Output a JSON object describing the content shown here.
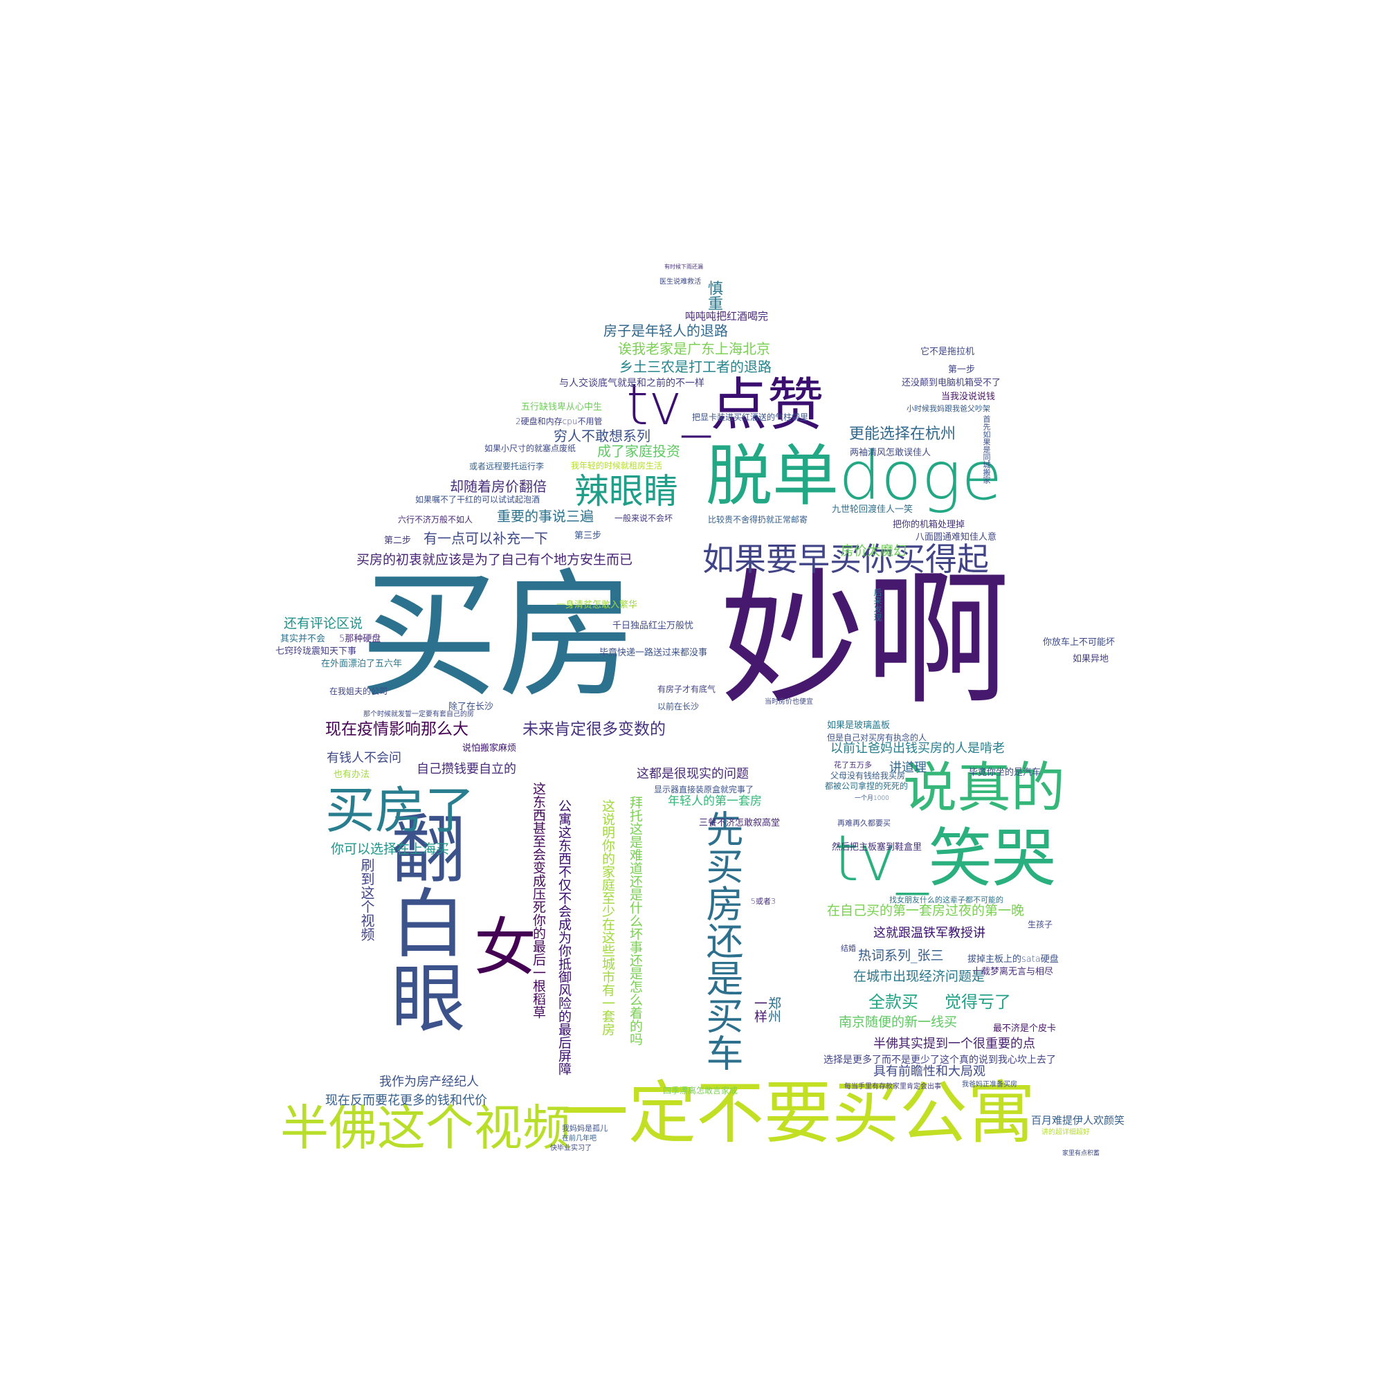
{
  "words": [
    {
      "text": "妙啊",
      "color": "#47196e"
    },
    {
      "text": "买房",
      "color": "#2c728e"
    },
    {
      "text": "一定不要买公寓",
      "color": "#c2df23"
    },
    {
      "text": "脱单doge",
      "color": "#22a884"
    },
    {
      "text": "tv_点赞",
      "color": "#3b0f70"
    },
    {
      "text": "tv_笑哭",
      "color": "#2ab07f"
    },
    {
      "text": "翻白眼",
      "color": "#3b528b"
    },
    {
      "text": "半佛这个视频",
      "color": "#b8de29"
    },
    {
      "text": "说真的",
      "color": "#35b779"
    },
    {
      "text": "买房了",
      "color": "#287d8e"
    },
    {
      "text": "女",
      "color": "#440154"
    },
    {
      "text": "先买房还是买车",
      "color": "#2d708e"
    },
    {
      "text": "如果要早买你买得起",
      "color": "#414487"
    },
    {
      "text": "辣眼睛",
      "color": "#1f9e89"
    },
    {
      "text": "房子是年轻人的退路",
      "color": "#31688e"
    },
    {
      "text": "诶我老家是广东上海北京",
      "color": "#7ad151"
    },
    {
      "text": "乡土三农是打工者的退路",
      "color": "#25858e"
    },
    {
      "text": "吨吨吨把红酒喝完",
      "color": "#482878"
    },
    {
      "text": "慎重",
      "color": "#2a788e"
    },
    {
      "text": "医生说难救活",
      "color": "#3e4989"
    },
    {
      "text": "有时候下雨还漏",
      "color": "#46327e"
    },
    {
      "text": "与人交谈底气就是和之前的不一样",
      "color": "#433e85"
    },
    {
      "text": "穷人不敢想系列",
      "color": "#3b528b"
    },
    {
      "text": "成了家庭投资",
      "color": "#5ec962"
    },
    {
      "text": "更能选择在杭州",
      "color": "#31688e"
    },
    {
      "text": "却随着房价翻倍",
      "color": "#472d7b"
    },
    {
      "text": "重要的事说三遍",
      "color": "#2c728e"
    },
    {
      "text": "有一点可以补充一下",
      "color": "#3e4989"
    },
    {
      "text": "买房的初衷就应该是为了自己有个地方安生而已",
      "color": "#482475"
    },
    {
      "text": "房价太魔幻",
      "color": "#6ece58"
    },
    {
      "text": "还有评论区说",
      "color": "#21918c"
    },
    {
      "text": "现在疫情影响那么大",
      "color": "#440154"
    },
    {
      "text": "未来肯定很多变数的",
      "color": "#46327e"
    },
    {
      "text": "有钱人不会问",
      "color": "#3e4989"
    },
    {
      "text": "自己攒钱要自立的",
      "color": "#472a7a"
    },
    {
      "text": "以前让爸妈出钱买房的人是啃老",
      "color": "#277f8e"
    },
    {
      "text": "这都是很现实的问题",
      "color": "#482878"
    },
    {
      "text": "年轻人的第一套房",
      "color": "#35b779"
    },
    {
      "text": "你可以选择在上海买",
      "color": "#1f988b"
    },
    {
      "text": "刷到这个视频",
      "color": "#414487"
    },
    {
      "text": "在自己买的第一套房过夜的第一晚",
      "color": "#7ad151"
    },
    {
      "text": "这就跟温铁军教授讲",
      "color": "#3b0f70"
    },
    {
      "text": "热词系列_张三",
      "color": "#355f8d"
    },
    {
      "text": "在城市出现经济问题是",
      "color": "#2a788e"
    },
    {
      "text": "全款买",
      "color": "#21a685"
    },
    {
      "text": "觉得亏了",
      "color": "#1fa187"
    },
    {
      "text": "南京随便的新一线买",
      "color": "#5ec962"
    },
    {
      "text": "半佛其实提到一个很重要的点",
      "color": "#481f70"
    },
    {
      "text": "具有前瞻性和大局观",
      "color": "#3e4989"
    },
    {
      "text": "我作为房产经纪人",
      "color": "#3b528b"
    },
    {
      "text": "现在反而要花更多的钱和代价",
      "color": "#355f8d"
    },
    {
      "text": "讲道理",
      "color": "#31688e"
    },
    {
      "text": "公寓这东西不仅不会成为你抵御风险的最后屏障",
      "color": "#3b0f70"
    },
    {
      "text": "这东西甚至会变成压死你的最后一根稻草",
      "color": "#46085c"
    },
    {
      "text": "这说明你的家庭至少在这些城市有一套房",
      "color": "#a0da39"
    },
    {
      "text": "拜托这是难道还是什么坏事还是怎么着的吗",
      "color": "#7ad151"
    },
    {
      "text": "一样",
      "color": "#481a6c"
    },
    {
      "text": "郑州",
      "color": "#2e6e8e"
    },
    {
      "text": "第一步",
      "color": "#404688"
    },
    {
      "text": "第二步",
      "color": "#453781"
    },
    {
      "text": "第三步",
      "color": "#39568c"
    },
    {
      "text": "选择是更多了而不是更少了这个真的说到我心坎上去了",
      "color": "#414487"
    },
    {
      "text": "百月难提伊人欢颜笑",
      "color": "#355f8d"
    },
    {
      "text": "最不济是个皮卡",
      "color": "#481769"
    },
    {
      "text": "拔掉主板上的sata硬盘",
      "color": "#3b528b"
    },
    {
      "text": "十载梦离无言与相尽",
      "color": "#472d7b"
    },
    {
      "text": "然后把主板塞到鞋盒里",
      "color": "#46327e"
    },
    {
      "text": "你放车上不可能坏",
      "color": "#3e4989"
    },
    {
      "text": "如果异地",
      "color": "#433e85"
    },
    {
      "text": "它不是拖拉机",
      "color": "#3f4788"
    },
    {
      "text": "还没颠到电脑机箱受不了",
      "color": "#424086"
    },
    {
      "text": "当我没说说钱",
      "color": "#471365"
    },
    {
      "text": "小时候我妈跟我爸父吵架",
      "color": "#365d8d"
    },
    {
      "text": "两袖清风怎敢误佳人",
      "color": "#3e4989"
    },
    {
      "text": "八面圆通难知佳人意",
      "color": "#404688"
    },
    {
      "text": "九世轮回渡佳人一笑",
      "color": "#2e6e8e"
    },
    {
      "text": "把你的机箱处理掉",
      "color": "#46327e"
    },
    {
      "text": "比较贵不舍得扔就正常邮寄",
      "color": "#355f8d"
    },
    {
      "text": "把显卡装进买红酒送的气柱袋里",
      "color": "#3b528b"
    },
    {
      "text": "2硬盘和内存cpu不用管",
      "color": "#414487"
    },
    {
      "text": "五行缺钱卑从心中生",
      "color": "#6ece58"
    },
    {
      "text": "六行不济万般不如人",
      "color": "#482878"
    },
    {
      "text": "如果小尺寸的就塞点废纸",
      "color": "#3e4989"
    },
    {
      "text": "或者远程要托运行李",
      "color": "#355f8d"
    },
    {
      "text": "我年轻的时候就租房生活",
      "color": "#b5de2b"
    },
    {
      "text": "如果嘱不了干红的可以试试起泡酒",
      "color": "#3b528b"
    },
    {
      "text": "一般来说不会坏",
      "color": "#453781"
    },
    {
      "text": "5那种硬盘",
      "color": "#472a7a"
    },
    {
      "text": "其实并不会",
      "color": "#2c728e"
    },
    {
      "text": "七窍玲珑震知天下事",
      "color": "#433e85"
    },
    {
      "text": "在外面漂泊了五六年",
      "color": "#2a788e"
    },
    {
      "text": "在我姐夫的公司",
      "color": "#404688"
    },
    {
      "text": "除了在长沙",
      "color": "#3b528b"
    },
    {
      "text": "以前在长沙",
      "color": "#39568c"
    },
    {
      "text": "有房子才有底气",
      "color": "#414487"
    },
    {
      "text": "毕竟快递一路送过来都没事",
      "color": "#3b528b"
    },
    {
      "text": "千日独品红尘万般忧",
      "color": "#3e4989"
    },
    {
      "text": "一身清贫怎敢入繁华",
      "color": "#a0da39"
    },
    {
      "text": "说怕搬家麻烦",
      "color": "#3b0f70"
    },
    {
      "text": "也有办法",
      "color": "#a0da39"
    },
    {
      "text": "如果是玻璃盖板",
      "color": "#2a788e"
    },
    {
      "text": "但是自己对买房有执念的人",
      "color": "#3b528b"
    },
    {
      "text": "花了五万多",
      "color": "#472d7b"
    },
    {
      "text": "父母没有钱给我买房",
      "color": "#355f8d"
    },
    {
      "text": "毕竟你坐的是汽车",
      "color": "#3e4989"
    },
    {
      "text": "都被公司拿捏的死死的",
      "color": "#2c728e"
    },
    {
      "text": "显示器直接装原盒就完事了",
      "color": "#3b528b"
    },
    {
      "text": "三餐不济怎敢叙高堂",
      "color": "#482878"
    },
    {
      "text": "再难再久都要买",
      "color": "#3e4989"
    },
    {
      "text": "四季漂离怎敢言家成",
      "color": "#7ad151"
    },
    {
      "text": "我妈妈是孤儿",
      "color": "#3b528b"
    },
    {
      "text": "在前几年吧",
      "color": "#355f8d"
    },
    {
      "text": "快毕业实习了",
      "color": "#3e4989"
    },
    {
      "text": "结婚",
      "color": "#404688"
    },
    {
      "text": "生孩子",
      "color": "#3e4989"
    },
    {
      "text": "5或者3",
      "color": "#472d7b"
    },
    {
      "text": "后来发现",
      "color": "#2c728e"
    },
    {
      "text": "家里有点积蓄",
      "color": "#3e4989"
    },
    {
      "text": "讲的超详细超好",
      "color": "#b5de2b"
    },
    {
      "text": "我爸妈正准备买房",
      "color": "#3b528b"
    },
    {
      "text": "每当手里有存款家里肯定会出事",
      "color": "#433e85"
    },
    {
      "text": "首先如果是同城搬家",
      "color": "#3b528b"
    },
    {
      "text": "当时房价也便宜",
      "color": "#3e4989"
    },
    {
      "text": "一个月1000",
      "color": "#39568c"
    },
    {
      "text": "找女朋友什么的这辈子都不可能的",
      "color": "#2c728e"
    },
    {
      "text": "那个时候就发誓一定要有套自己的房",
      "color": "#3e4989"
    },
    {
      "text": "成了家庭投资",
      "color": "#5ec962"
    }
  ]
}
